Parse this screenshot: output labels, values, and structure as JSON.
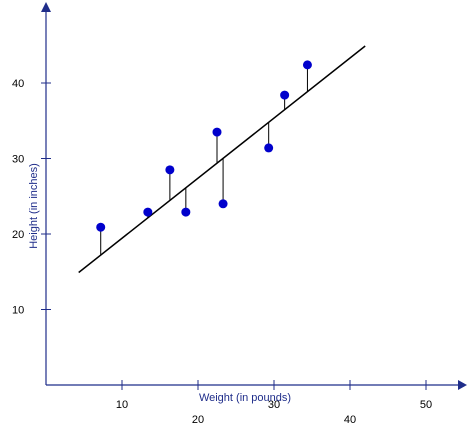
{
  "chart_data": {
    "type": "scatter",
    "xlabel": "Weight (in pounds)",
    "ylabel": "Height (in inches)",
    "xlim": [
      0,
      53
    ],
    "ylim": [
      0,
      50
    ],
    "x_ticks": [
      {
        "value": 10,
        "label": "10"
      },
      {
        "value": 20,
        "label": "20"
      },
      {
        "value": 30,
        "label": "30"
      },
      {
        "value": 40,
        "label": "40"
      },
      {
        "value": 50,
        "label": "50"
      }
    ],
    "y_ticks": [
      {
        "value": 10,
        "label": "10"
      },
      {
        "value": 20,
        "label": "20"
      },
      {
        "value": 30,
        "label": "30"
      },
      {
        "value": 40,
        "label": "40"
      }
    ],
    "points": [
      {
        "x": 7.2,
        "y": 20.9
      },
      {
        "x": 13.4,
        "y": 22.9
      },
      {
        "x": 16.3,
        "y": 28.5
      },
      {
        "x": 18.4,
        "y": 22.9
      },
      {
        "x": 22.5,
        "y": 33.5
      },
      {
        "x": 23.3,
        "y": 24.0
      },
      {
        "x": 29.3,
        "y": 31.4
      },
      {
        "x": 31.4,
        "y": 38.4
      },
      {
        "x": 34.4,
        "y": 42.4
      }
    ],
    "regression_line": {
      "x1": 4.3,
      "y1": 14.9,
      "x2": 42.0,
      "y2": 44.9
    },
    "residuals_shown": true,
    "grid": false,
    "colors": {
      "points": "#0000cc",
      "axes": "#1f2d8a",
      "line": "#000000",
      "label": "#1f2d8a"
    }
  }
}
